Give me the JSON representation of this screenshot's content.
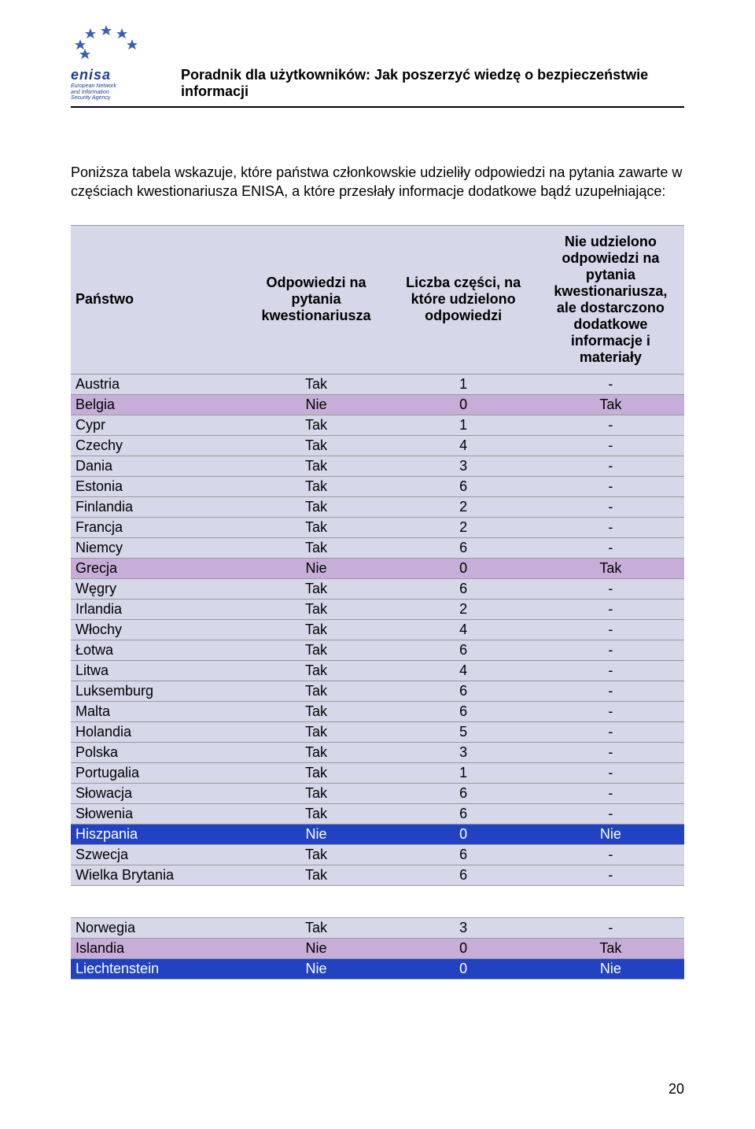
{
  "header": {
    "logo_brand": "enisa",
    "logo_sub1": "European Network",
    "logo_sub2": "and Information",
    "logo_sub3": "Security Agency",
    "title": "Poradnik dla użytkowników: Jak poszerzyć wiedzę o bezpieczeństwie informacji"
  },
  "intro": "Poniższa tabela wskazuje, które państwa członkowskie udzieliły odpowiedzi na pytania zawarte w częściach kwestionariusza ENISA, a które przesłały informacje dodatkowe bądź uzupełniające:",
  "table1": {
    "header_bg": "#d7d7ea",
    "border_color": "#999999",
    "row_default_bg": "#d7d7ea",
    "row_violet_bg": "#c6aed8",
    "row_blue_bg": "#2143c2",
    "row_blue_text": "#ffffff",
    "columns": [
      "Państwo",
      "Odpowiedzi na pytania kwestionariusza",
      "Liczba części, na które udzielono odpowiedzi",
      "Nie udzielono odpowiedzi na pytania kwestionariusza, ale dostarczono dodatkowe informacje i materiały"
    ],
    "rows": [
      {
        "c": [
          "Austria",
          "Tak",
          "1",
          "-"
        ],
        "style": "default"
      },
      {
        "c": [
          "Belgia",
          "Nie",
          "0",
          "Tak"
        ],
        "style": "violet"
      },
      {
        "c": [
          "Cypr",
          "Tak",
          "1",
          "-"
        ],
        "style": "default"
      },
      {
        "c": [
          "Czechy",
          "Tak",
          "4",
          "-"
        ],
        "style": "default"
      },
      {
        "c": [
          "Dania",
          "Tak",
          "3",
          "-"
        ],
        "style": "default"
      },
      {
        "c": [
          "Estonia",
          "Tak",
          "6",
          "-"
        ],
        "style": "default"
      },
      {
        "c": [
          "Finlandia",
          "Tak",
          "2",
          "-"
        ],
        "style": "default"
      },
      {
        "c": [
          "Francja",
          "Tak",
          "2",
          "-"
        ],
        "style": "default"
      },
      {
        "c": [
          "Niemcy",
          "Tak",
          "6",
          "-"
        ],
        "style": "default"
      },
      {
        "c": [
          "Grecja",
          "Nie",
          "0",
          "Tak"
        ],
        "style": "violet"
      },
      {
        "c": [
          "Węgry",
          "Tak",
          "6",
          "-"
        ],
        "style": "default"
      },
      {
        "c": [
          "Irlandia",
          "Tak",
          "2",
          "-"
        ],
        "style": "default"
      },
      {
        "c": [
          "Włochy",
          "Tak",
          "4",
          "-"
        ],
        "style": "default"
      },
      {
        "c": [
          "Łotwa",
          "Tak",
          "6",
          "-"
        ],
        "style": "default"
      },
      {
        "c": [
          "Litwa",
          "Tak",
          "4",
          "-"
        ],
        "style": "default"
      },
      {
        "c": [
          "Luksemburg",
          "Tak",
          "6",
          "-"
        ],
        "style": "default"
      },
      {
        "c": [
          "Malta",
          "Tak",
          "6",
          "-"
        ],
        "style": "default"
      },
      {
        "c": [
          "Holandia",
          "Tak",
          "5",
          "-"
        ],
        "style": "default"
      },
      {
        "c": [
          "Polska",
          "Tak",
          "3",
          "-"
        ],
        "style": "default"
      },
      {
        "c": [
          "Portugalia",
          "Tak",
          "1",
          "-"
        ],
        "style": "default"
      },
      {
        "c": [
          "Słowacja",
          "Tak",
          "6",
          "-"
        ],
        "style": "default"
      },
      {
        "c": [
          "Słowenia",
          "Tak",
          "6",
          "-"
        ],
        "style": "default"
      },
      {
        "c": [
          "Hiszpania",
          "Nie",
          "0",
          "Nie"
        ],
        "style": "blue"
      },
      {
        "c": [
          "Szwecja",
          "Tak",
          "6",
          "-"
        ],
        "style": "default"
      },
      {
        "c": [
          "Wielka Brytania",
          "Tak",
          "6",
          "-"
        ],
        "style": "default"
      }
    ]
  },
  "table2": {
    "rows": [
      {
        "c": [
          "Norwegia",
          "Tak",
          "3",
          "-"
        ],
        "style": "default"
      },
      {
        "c": [
          "Islandia",
          "Nie",
          "0",
          "Tak"
        ],
        "style": "violet"
      },
      {
        "c": [
          "Liechtenstein",
          "Nie",
          "0",
          "Nie"
        ],
        "style": "blue"
      }
    ]
  },
  "col_widths": [
    "28%",
    "24%",
    "24%",
    "24%"
  ],
  "page_number": "20",
  "star_color": "#3b5fb5"
}
